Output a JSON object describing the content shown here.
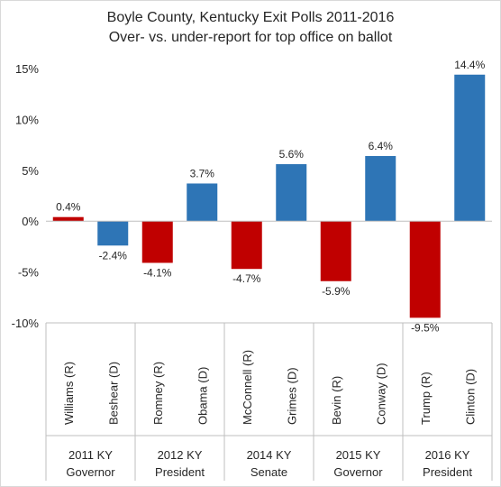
{
  "chart_data": {
    "type": "bar",
    "title": "Boyle County, Kentucky Exit Polls 2011-2016",
    "subtitle": "Over- vs. under-report for top office on ballot",
    "xlabel": "",
    "ylabel": "",
    "ylim": [
      -10,
      15
    ],
    "y_ticks": [
      "15%",
      "10%",
      "5%",
      "0%",
      "-5%",
      "-10%"
    ],
    "grid": false,
    "legend": "none",
    "colors": {
      "R": "#c00000",
      "D": "#2e75b6"
    },
    "groups": [
      {
        "year": "2011 KY",
        "office": "Governor"
      },
      {
        "year": "2012 KY",
        "office": "President"
      },
      {
        "year": "2014 KY",
        "office": "Senate"
      },
      {
        "year": "2015 KY",
        "office": "Governor"
      },
      {
        "year": "2016 KY",
        "office": "President"
      }
    ],
    "categories": [
      "Williams (R)",
      "Beshear (D)",
      "Romney (R)",
      "Obama (D)",
      "McConnell (R)",
      "Grimes (D)",
      "Bevin (R)",
      "Conway (D)",
      "Trump (R)",
      "Clinton (D)"
    ],
    "values": [
      0.4,
      -2.4,
      -4.1,
      3.7,
      -4.7,
      5.6,
      -5.9,
      6.4,
      -9.5,
      14.4
    ],
    "value_labels": [
      "0.4%",
      "-2.4%",
      "-4.1%",
      "3.7%",
      "-4.7%",
      "5.6%",
      "-5.9%",
      "6.4%",
      "-9.5%",
      "14.4%"
    ],
    "party": [
      "R",
      "D",
      "R",
      "D",
      "R",
      "D",
      "R",
      "D",
      "R",
      "D"
    ]
  }
}
